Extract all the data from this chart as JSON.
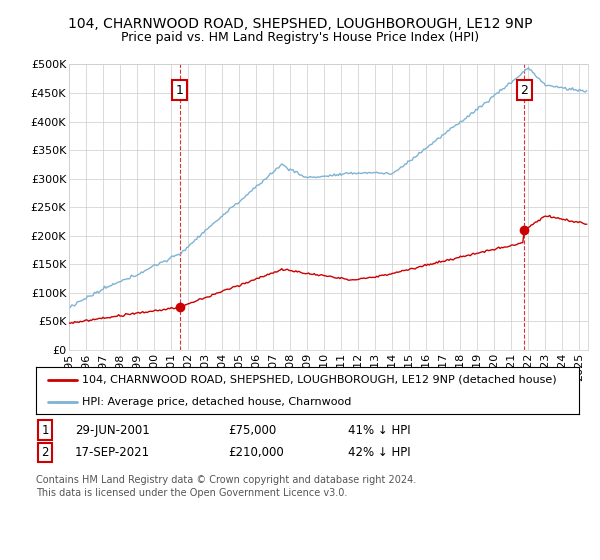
{
  "title": "104, CHARNWOOD ROAD, SHEPSHED, LOUGHBOROUGH, LE12 9NP",
  "subtitle": "Price paid vs. HM Land Registry's House Price Index (HPI)",
  "ylim": [
    0,
    500000
  ],
  "yticks": [
    0,
    50000,
    100000,
    150000,
    200000,
    250000,
    300000,
    350000,
    400000,
    450000,
    500000
  ],
  "xlim_start": 1995.0,
  "xlim_end": 2025.5,
  "legend_line1": "104, CHARNWOOD ROAD, SHEPSHED, LOUGHBOROUGH, LE12 9NP (detached house)",
  "legend_line2": "HPI: Average price, detached house, Charnwood",
  "footer": "Contains HM Land Registry data © Crown copyright and database right 2024.\nThis data is licensed under the Open Government Licence v3.0.",
  "line_color_red": "#cc0000",
  "line_color_blue": "#7fb3d3",
  "background_color": "#ffffff",
  "grid_color": "#cccccc",
  "marker1_t": 2001.5,
  "marker1_v": 75000,
  "marker2_t": 2021.75,
  "marker2_v": 210000,
  "sale1_date": "29-JUN-2001",
  "sale1_price": "£75,000",
  "sale1_hpi": "41% ↓ HPI",
  "sale2_date": "17-SEP-2021",
  "sale2_price": "£210,000",
  "sale2_hpi": "42% ↓ HPI"
}
